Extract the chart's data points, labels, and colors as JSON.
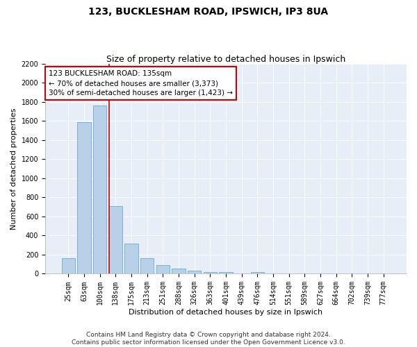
{
  "title1": "123, BUCKLESHAM ROAD, IPSWICH, IP3 8UA",
  "title2": "Size of property relative to detached houses in Ipswich",
  "xlabel": "Distribution of detached houses by size in Ipswich",
  "ylabel": "Number of detached properties",
  "categories": [
    "25sqm",
    "63sqm",
    "100sqm",
    "138sqm",
    "175sqm",
    "213sqm",
    "251sqm",
    "288sqm",
    "326sqm",
    "363sqm",
    "401sqm",
    "439sqm",
    "476sqm",
    "514sqm",
    "551sqm",
    "589sqm",
    "627sqm",
    "664sqm",
    "702sqm",
    "739sqm",
    "777sqm"
  ],
  "values": [
    160,
    1590,
    1760,
    710,
    315,
    160,
    88,
    55,
    30,
    20,
    20,
    0,
    20,
    0,
    0,
    0,
    0,
    0,
    0,
    0,
    0
  ],
  "bar_color": "#b8d0e8",
  "bar_edge_color": "#6aaad4",
  "vline_color": "#cc0000",
  "annotation_text": "123 BUCKLESHAM ROAD: 135sqm\n← 70% of detached houses are smaller (3,373)\n30% of semi-detached houses are larger (1,423) →",
  "annotation_box_color": "#ffffff",
  "annotation_box_edge": "#cc0000",
  "ylim": [
    0,
    2200
  ],
  "yticks": [
    0,
    200,
    400,
    600,
    800,
    1000,
    1200,
    1400,
    1600,
    1800,
    2000,
    2200
  ],
  "bg_color": "#e8eef7",
  "footer1": "Contains HM Land Registry data © Crown copyright and database right 2024.",
  "footer2": "Contains public sector information licensed under the Open Government Licence v3.0.",
  "title1_fontsize": 10,
  "title2_fontsize": 9,
  "axis_fontsize": 8,
  "tick_fontsize": 7,
  "footer_fontsize": 6.5,
  "annotation_fontsize": 7.5
}
